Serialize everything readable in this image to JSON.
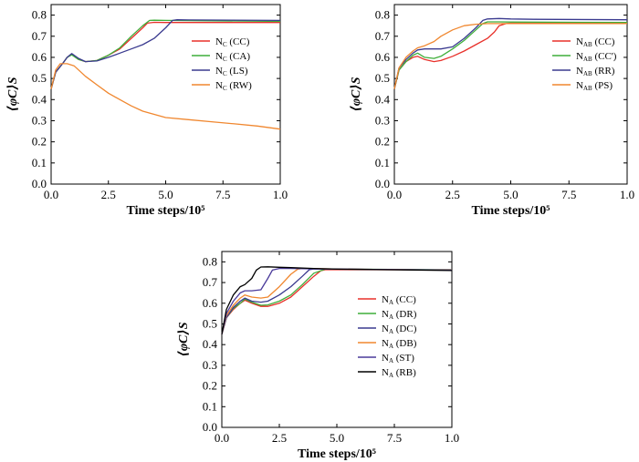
{
  "figure": {
    "panel_labels": []
  },
  "chart_data": [
    {
      "type": "line",
      "xlabel": "Time steps/10⁵",
      "ylabel": "⟨φC⟩S",
      "xlim": [
        0,
        1.0
      ],
      "ylim": [
        0,
        0.85
      ],
      "xticks": [
        "0.0",
        "2.5",
        "5.0",
        "7.5",
        "1.0"
      ],
      "yticks": [
        "0.0",
        "0.1",
        "0.2",
        "0.3",
        "0.4",
        "0.5",
        "0.6",
        "0.7",
        "0.8"
      ],
      "legend_position": "upper-right",
      "series": [
        {
          "name": "NC(CC)",
          "base": "N",
          "sub": "C",
          "suffix": "(CC)",
          "color": "#e8302a",
          "x": [
            0,
            0.02,
            0.05,
            0.07,
            0.09,
            0.12,
            0.15,
            0.2,
            0.25,
            0.3,
            0.35,
            0.4,
            0.42,
            0.45,
            0.5,
            0.55,
            1.0
          ],
          "y": [
            0.45,
            0.53,
            0.57,
            0.6,
            0.615,
            0.59,
            0.58,
            0.585,
            0.61,
            0.64,
            0.69,
            0.74,
            0.762,
            0.766,
            0.765,
            0.765,
            0.765
          ]
        },
        {
          "name": "NC(CA)",
          "base": "N",
          "sub": "C",
          "suffix": "(CA)",
          "color": "#3fae3a",
          "x": [
            0,
            0.02,
            0.05,
            0.07,
            0.09,
            0.12,
            0.15,
            0.2,
            0.25,
            0.3,
            0.35,
            0.4,
            0.43,
            0.45,
            0.5,
            1.0
          ],
          "y": [
            0.45,
            0.53,
            0.57,
            0.6,
            0.612,
            0.59,
            0.58,
            0.585,
            0.61,
            0.645,
            0.7,
            0.75,
            0.775,
            0.776,
            0.775,
            0.77
          ]
        },
        {
          "name": "NC(LS)",
          "base": "N",
          "sub": "C",
          "suffix": "(LS)",
          "color": "#3a3a8f",
          "x": [
            0,
            0.02,
            0.05,
            0.07,
            0.09,
            0.12,
            0.15,
            0.2,
            0.25,
            0.3,
            0.35,
            0.4,
            0.45,
            0.5,
            0.53,
            0.55,
            0.6,
            1.0
          ],
          "y": [
            0.45,
            0.53,
            0.57,
            0.6,
            0.618,
            0.595,
            0.58,
            0.583,
            0.6,
            0.62,
            0.64,
            0.66,
            0.69,
            0.74,
            0.775,
            0.778,
            0.777,
            0.775
          ]
        },
        {
          "name": "NC(RW)",
          "base": "N",
          "sub": "C",
          "suffix": "(RW)",
          "color": "#f0872f",
          "x": [
            0,
            0.02,
            0.04,
            0.07,
            0.1,
            0.15,
            0.2,
            0.25,
            0.3,
            0.35,
            0.4,
            0.45,
            0.5,
            0.6,
            0.7,
            0.8,
            0.9,
            1.0
          ],
          "y": [
            0.45,
            0.54,
            0.57,
            0.57,
            0.56,
            0.51,
            0.47,
            0.43,
            0.4,
            0.37,
            0.345,
            0.33,
            0.315,
            0.305,
            0.295,
            0.285,
            0.275,
            0.26
          ]
        }
      ]
    },
    {
      "type": "line",
      "xlabel": "Time steps/10⁵",
      "ylabel": "⟨φC⟩S",
      "xlim": [
        0,
        1.0
      ],
      "ylim": [
        0,
        0.85
      ],
      "xticks": [
        "0.0",
        "2.5",
        "5.0",
        "7.5",
        "1.0"
      ],
      "yticks": [
        "0.0",
        "0.1",
        "0.2",
        "0.3",
        "0.4",
        "0.5",
        "0.6",
        "0.7",
        "0.8"
      ],
      "legend_position": "upper-right",
      "series": [
        {
          "name": "NAB(CC)",
          "base": "N",
          "sub": "AB",
          "suffix": "(CC)",
          "color": "#e8302a",
          "x": [
            0,
            0.02,
            0.05,
            0.08,
            0.1,
            0.13,
            0.17,
            0.2,
            0.25,
            0.3,
            0.35,
            0.4,
            0.43,
            0.45,
            0.48,
            0.5,
            0.6,
            1.0
          ],
          "y": [
            0.45,
            0.54,
            0.58,
            0.6,
            0.605,
            0.59,
            0.58,
            0.585,
            0.605,
            0.63,
            0.66,
            0.69,
            0.72,
            0.75,
            0.76,
            0.762,
            0.762,
            0.762
          ]
        },
        {
          "name": "NAB(CC')",
          "base": "N",
          "sub": "AB",
          "suffix": "(CC')",
          "color": "#3fae3a",
          "x": [
            0,
            0.02,
            0.05,
            0.08,
            0.1,
            0.13,
            0.17,
            0.2,
            0.25,
            0.3,
            0.35,
            0.38,
            0.4,
            0.45,
            0.5,
            1.0
          ],
          "y": [
            0.45,
            0.54,
            0.58,
            0.61,
            0.62,
            0.6,
            0.595,
            0.605,
            0.64,
            0.68,
            0.73,
            0.76,
            0.768,
            0.768,
            0.767,
            0.765
          ]
        },
        {
          "name": "NAB(RR)",
          "base": "N",
          "sub": "AB",
          "suffix": "(RR)",
          "color": "#3a3a8f",
          "x": [
            0,
            0.02,
            0.05,
            0.08,
            0.1,
            0.13,
            0.17,
            0.2,
            0.25,
            0.3,
            0.35,
            0.38,
            0.4,
            0.45,
            0.5,
            0.6,
            1.0
          ],
          "y": [
            0.45,
            0.55,
            0.59,
            0.62,
            0.635,
            0.64,
            0.64,
            0.64,
            0.65,
            0.69,
            0.74,
            0.775,
            0.782,
            0.784,
            0.782,
            0.78,
            0.778
          ]
        },
        {
          "name": "NAB(PS)",
          "base": "N",
          "sub": "AB",
          "suffix": "(PS)",
          "color": "#f0872f",
          "x": [
            0,
            0.02,
            0.05,
            0.08,
            0.1,
            0.13,
            0.17,
            0.2,
            0.25,
            0.3,
            0.35,
            0.4,
            0.5,
            0.6,
            1.0
          ],
          "y": [
            0.45,
            0.55,
            0.6,
            0.63,
            0.645,
            0.655,
            0.675,
            0.7,
            0.73,
            0.75,
            0.757,
            0.76,
            0.76,
            0.76,
            0.76
          ]
        }
      ]
    },
    {
      "type": "line",
      "xlabel": "Time steps/10⁵",
      "ylabel": "⟨φC⟩S",
      "xlim": [
        0,
        1.0
      ],
      "ylim": [
        0,
        0.85
      ],
      "xticks": [
        "0.0",
        "2.5",
        "5.0",
        "7.5",
        "1.0"
      ],
      "yticks": [
        "0.0",
        "0.1",
        "0.2",
        "0.3",
        "0.4",
        "0.5",
        "0.6",
        "0.7",
        "0.8"
      ],
      "legend_position": "right",
      "series": [
        {
          "name": "NA(CC)",
          "base": "N",
          "sub": "A",
          "suffix": "(CC)",
          "color": "#e8302a",
          "x": [
            0,
            0.02,
            0.05,
            0.08,
            0.1,
            0.13,
            0.17,
            0.2,
            0.25,
            0.3,
            0.35,
            0.4,
            0.43,
            0.45,
            0.5,
            1.0
          ],
          "y": [
            0.45,
            0.53,
            0.57,
            0.6,
            0.615,
            0.6,
            0.585,
            0.585,
            0.6,
            0.63,
            0.68,
            0.73,
            0.757,
            0.762,
            0.762,
            0.762
          ]
        },
        {
          "name": "NA(DR)",
          "base": "N",
          "sub": "A",
          "suffix": "(DR)",
          "color": "#3fae3a",
          "x": [
            0,
            0.02,
            0.05,
            0.08,
            0.1,
            0.13,
            0.17,
            0.2,
            0.25,
            0.3,
            0.35,
            0.4,
            0.45,
            0.5,
            1.0
          ],
          "y": [
            0.45,
            0.53,
            0.575,
            0.6,
            0.62,
            0.605,
            0.59,
            0.592,
            0.61,
            0.64,
            0.69,
            0.745,
            0.765,
            0.765,
            0.762
          ]
        },
        {
          "name": "NA(DC)",
          "base": "N",
          "sub": "A",
          "suffix": "(DC)",
          "color": "#3a3a8f",
          "x": [
            0,
            0.02,
            0.05,
            0.08,
            0.1,
            0.13,
            0.17,
            0.2,
            0.25,
            0.3,
            0.35,
            0.38,
            0.4,
            0.5,
            1.0
          ],
          "y": [
            0.45,
            0.53,
            0.58,
            0.61,
            0.625,
            0.61,
            0.605,
            0.61,
            0.64,
            0.68,
            0.73,
            0.762,
            0.766,
            0.765,
            0.76
          ]
        },
        {
          "name": "NA(DB)",
          "base": "N",
          "sub": "A",
          "suffix": "(DB)",
          "color": "#f0872f",
          "x": [
            0,
            0.02,
            0.05,
            0.08,
            0.1,
            0.13,
            0.17,
            0.2,
            0.25,
            0.3,
            0.33,
            0.35,
            0.4,
            0.5,
            1.0
          ],
          "y": [
            0.45,
            0.54,
            0.59,
            0.625,
            0.64,
            0.63,
            0.625,
            0.63,
            0.68,
            0.74,
            0.765,
            0.768,
            0.768,
            0.765,
            0.76
          ]
        },
        {
          "name": "NA(ST)",
          "base": "N",
          "sub": "A",
          "suffix": "(ST)",
          "color": "#4a3a9a",
          "x": [
            0,
            0.02,
            0.05,
            0.08,
            0.1,
            0.13,
            0.17,
            0.2,
            0.22,
            0.25,
            0.3,
            0.4,
            0.5,
            1.0
          ],
          "y": [
            0.45,
            0.55,
            0.61,
            0.65,
            0.66,
            0.66,
            0.665,
            0.72,
            0.76,
            0.768,
            0.768,
            0.766,
            0.765,
            0.76
          ]
        },
        {
          "name": "NA(RB)",
          "base": "N",
          "sub": "A",
          "suffix": "(RB)",
          "color": "#000000",
          "x": [
            0,
            0.02,
            0.05,
            0.08,
            0.1,
            0.13,
            0.15,
            0.17,
            0.2,
            0.25,
            0.3,
            0.4,
            0.5,
            1.0
          ],
          "y": [
            0.45,
            0.57,
            0.64,
            0.68,
            0.69,
            0.72,
            0.76,
            0.775,
            0.776,
            0.774,
            0.772,
            0.768,
            0.765,
            0.758
          ]
        }
      ]
    }
  ]
}
